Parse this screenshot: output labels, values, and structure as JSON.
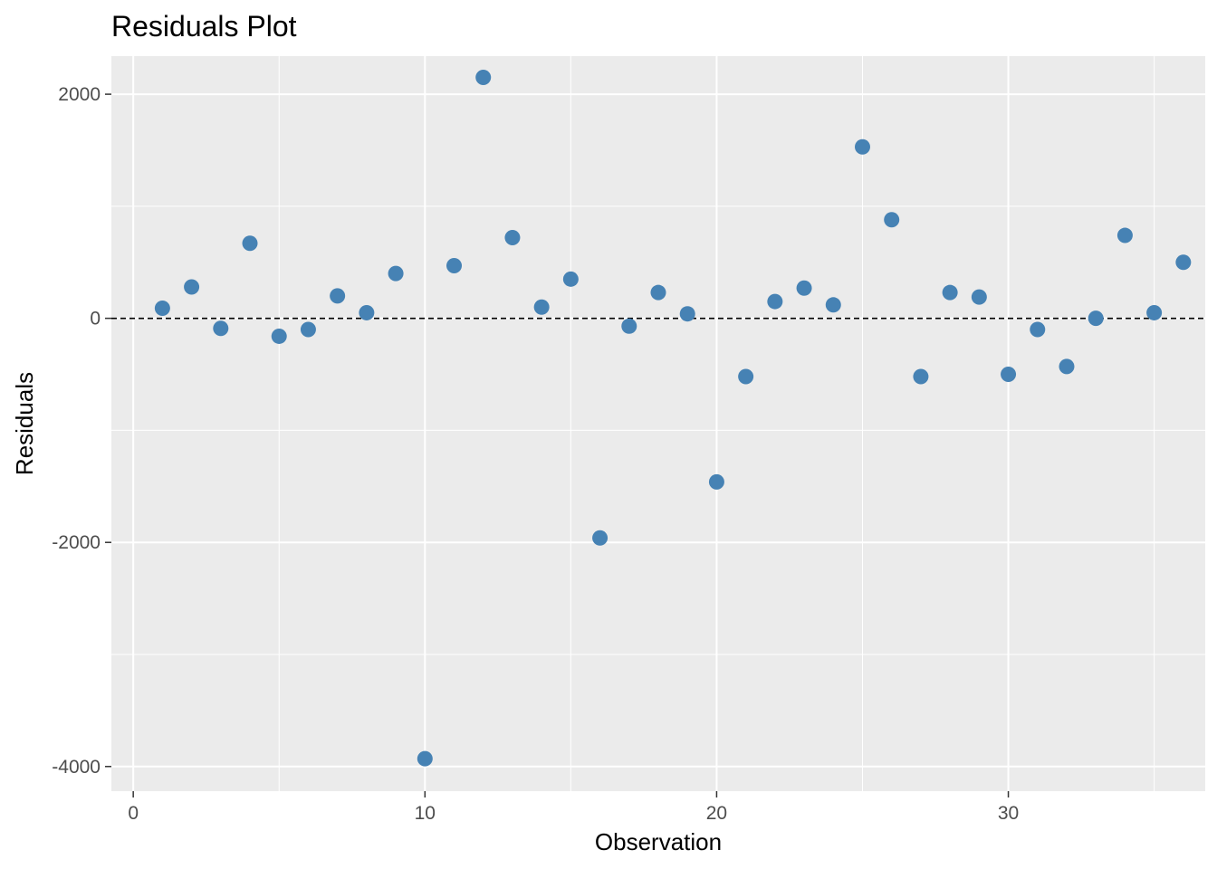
{
  "chart_data": {
    "type": "scatter",
    "title": "Residuals Plot",
    "xlabel": "Observation",
    "ylabel": "Residuals",
    "xlim": [
      -0.75,
      36.75
    ],
    "ylim": [
      -4220,
      2340
    ],
    "x_ticks": [
      0,
      10,
      20,
      30
    ],
    "x_tick_labels": [
      "0",
      "10",
      "20",
      "30"
    ],
    "y_ticks": [
      -4000,
      -2000,
      0,
      2000
    ],
    "y_tick_labels": [
      "-4000",
      "-2000",
      "0",
      "2000"
    ],
    "reference_line": {
      "y": 0,
      "style": "dashed",
      "color": "#000000"
    },
    "grid": true,
    "legend": "none",
    "colors": {
      "panel_background": "#ebebeb",
      "grid": "#ffffff",
      "point": "#4682b4",
      "tick_text": "#4d4d4d"
    },
    "series": [
      {
        "x": [
          1,
          2,
          3,
          4,
          5,
          6,
          7,
          8,
          9,
          10,
          11,
          12,
          13,
          14,
          15,
          16,
          17,
          18,
          19,
          20,
          21,
          22,
          23,
          24,
          25,
          26,
          27,
          28,
          29,
          30,
          31,
          32,
          33,
          34,
          35,
          36
        ],
        "y": [
          90,
          280,
          -90,
          670,
          -160,
          -100,
          200,
          50,
          400,
          -3930,
          470,
          2150,
          720,
          100,
          350,
          -1960,
          -70,
          230,
          40,
          -1460,
          -520,
          150,
          270,
          120,
          1530,
          880,
          -520,
          230,
          190,
          -500,
          -100,
          -430,
          0,
          740,
          50,
          500
        ]
      }
    ]
  }
}
